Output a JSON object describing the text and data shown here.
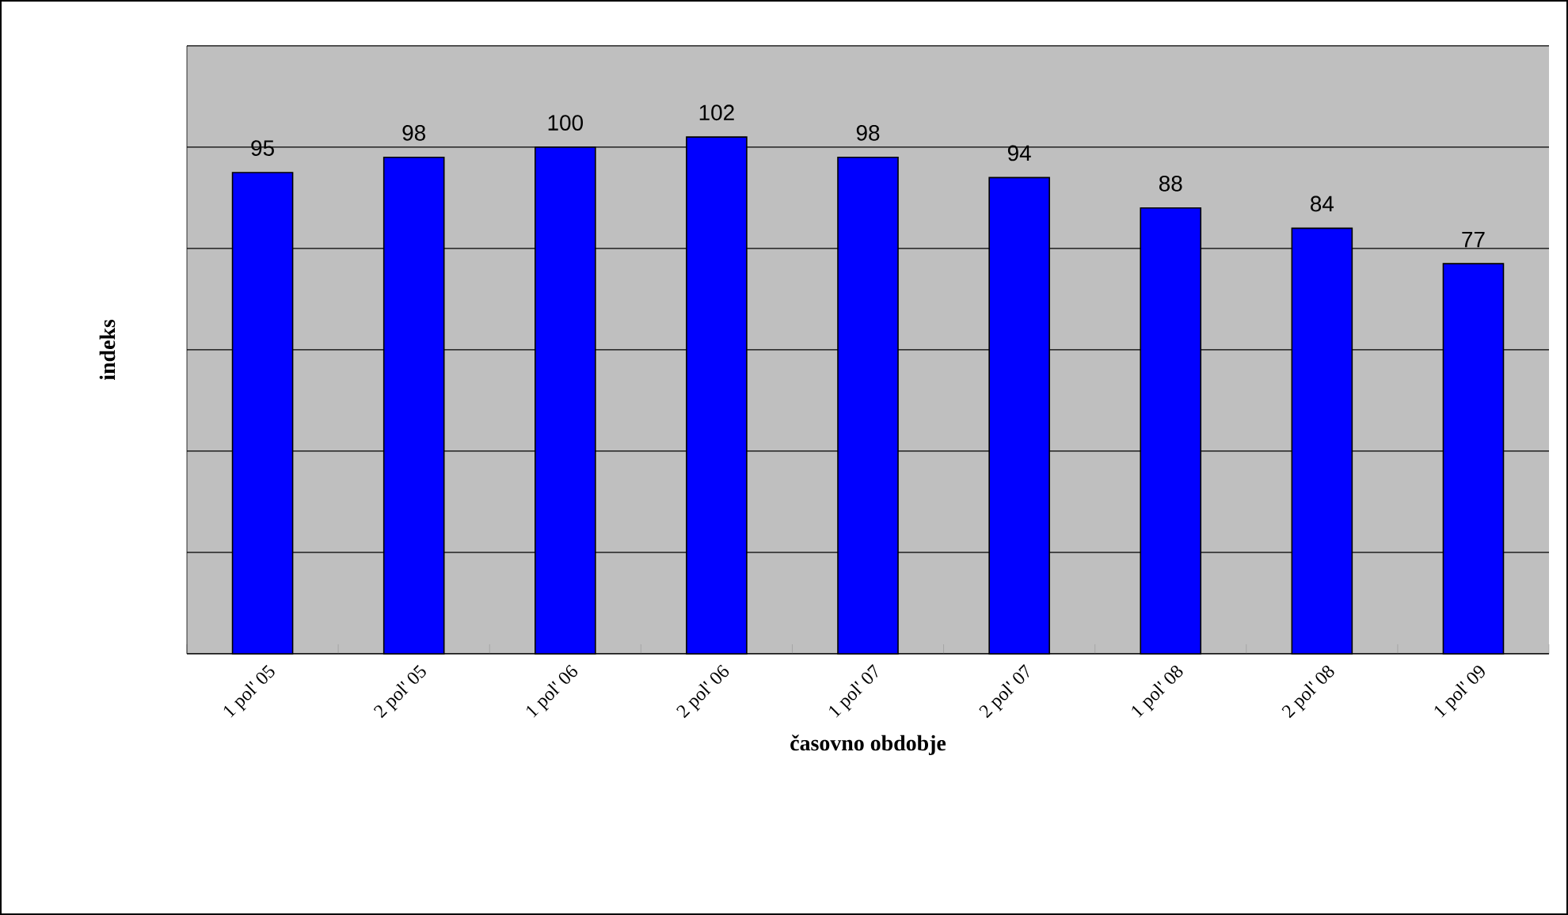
{
  "chart_data": {
    "type": "bar",
    "xlabel": "časovno obdobje",
    "ylabel": "indeks",
    "categories": [
      "1 pol' 05",
      "2 pol' 05",
      "1 pol' 06",
      "2 pol' 06",
      "1 pol' 07",
      "2 pol' 07",
      "1 pol' 08",
      "2 pol' 08",
      "1 pol' 09"
    ],
    "values": [
      95,
      98,
      100,
      102,
      98,
      94,
      88,
      84,
      77
    ],
    "color": "#0000ff",
    "ylim": [
      0,
      120
    ],
    "yticks": [
      {
        "value": 0,
        "label": null
      },
      {
        "value": 20,
        "label": null
      },
      {
        "value": 40,
        "label": null
      },
      {
        "value": 60,
        "label": null
      },
      {
        "value": 80,
        "label": null
      },
      {
        "value": 100,
        "label": null
      },
      {
        "value": 120,
        "label": null
      }
    ],
    "tick_labels": "x",
    "grid": "y",
    "data_labels": true
  }
}
